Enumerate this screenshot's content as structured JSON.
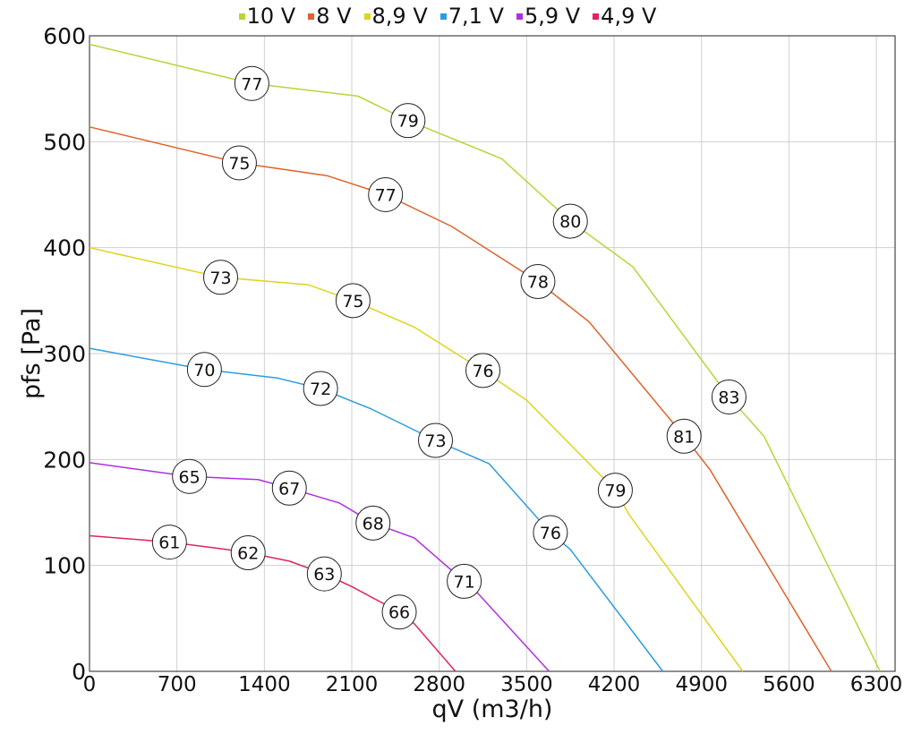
{
  "chart_data": {
    "type": "line",
    "title": "",
    "xlabel": "qV (m3/h)",
    "ylabel": "pfs [Pa]",
    "xlim": [
      0,
      6450
    ],
    "ylim": [
      0,
      600
    ],
    "xticks": [
      0,
      700,
      1400,
      2100,
      2800,
      3500,
      4200,
      4900,
      5600,
      6300
    ],
    "yticks": [
      0,
      100,
      200,
      300,
      400,
      500,
      600
    ],
    "grid": true,
    "legend_position": "top-center",
    "series": [
      {
        "name": "10 V",
        "color": "#b5d63a",
        "points": [
          [
            0,
            592
          ],
          [
            1300,
            555
          ],
          [
            2150,
            543
          ],
          [
            2550,
            520
          ],
          [
            3300,
            484
          ],
          [
            3850,
            425
          ],
          [
            4350,
            382
          ],
          [
            5120,
            259
          ],
          [
            5400,
            222
          ],
          [
            6330,
            0
          ]
        ],
        "labels": [
          {
            "x": 1300,
            "y": 555,
            "text": "77"
          },
          {
            "x": 2550,
            "y": 520,
            "text": "79"
          },
          {
            "x": 3850,
            "y": 425,
            "text": "80"
          },
          {
            "x": 5120,
            "y": 259,
            "text": "83"
          }
        ]
      },
      {
        "name": "8 V",
        "color": "#e0622c",
        "points": [
          [
            0,
            514
          ],
          [
            1200,
            480
          ],
          [
            1900,
            468
          ],
          [
            2370,
            450
          ],
          [
            2900,
            420
          ],
          [
            3590,
            368
          ],
          [
            4000,
            330
          ],
          [
            4760,
            222
          ],
          [
            4970,
            190
          ],
          [
            5940,
            0
          ]
        ],
        "labels": [
          {
            "x": 1200,
            "y": 480,
            "text": "75"
          },
          {
            "x": 2370,
            "y": 450,
            "text": "77"
          },
          {
            "x": 3590,
            "y": 368,
            "text": "78"
          },
          {
            "x": 4760,
            "y": 222,
            "text": "81"
          }
        ]
      },
      {
        "name": "8,9 V",
        "color": "#dfd41c",
        "points": [
          [
            0,
            400
          ],
          [
            1050,
            372
          ],
          [
            1750,
            365
          ],
          [
            2110,
            350
          ],
          [
            2600,
            325
          ],
          [
            3150,
            284
          ],
          [
            3500,
            256
          ],
          [
            4210,
            171
          ],
          [
            4320,
            148
          ],
          [
            5230,
            0
          ]
        ],
        "labels": [
          {
            "x": 1050,
            "y": 372,
            "text": "73"
          },
          {
            "x": 2110,
            "y": 350,
            "text": "75"
          },
          {
            "x": 3150,
            "y": 284,
            "text": "76"
          },
          {
            "x": 4210,
            "y": 171,
            "text": "79"
          }
        ]
      },
      {
        "name": "7,1 V",
        "color": "#2b9ce0",
        "points": [
          [
            0,
            305
          ],
          [
            920,
            285
          ],
          [
            1500,
            277
          ],
          [
            1850,
            267
          ],
          [
            2250,
            248
          ],
          [
            2770,
            218
          ],
          [
            3200,
            196
          ],
          [
            3690,
            131
          ],
          [
            3850,
            115
          ],
          [
            4590,
            0
          ]
        ],
        "labels": [
          {
            "x": 920,
            "y": 285,
            "text": "70"
          },
          {
            "x": 1850,
            "y": 267,
            "text": "72"
          },
          {
            "x": 2770,
            "y": 218,
            "text": "73"
          },
          {
            "x": 3690,
            "y": 131,
            "text": "76"
          }
        ]
      },
      {
        "name": "5,9 V",
        "color": "#b12ee0",
        "points": [
          [
            0,
            197
          ],
          [
            800,
            184
          ],
          [
            1350,
            181
          ],
          [
            1600,
            173
          ],
          [
            2000,
            159
          ],
          [
            2270,
            140
          ],
          [
            2600,
            126
          ],
          [
            3000,
            85
          ],
          [
            3060,
            80
          ],
          [
            3680,
            0
          ]
        ],
        "labels": [
          {
            "x": 800,
            "y": 184,
            "text": "65"
          },
          {
            "x": 1600,
            "y": 173,
            "text": "67"
          },
          {
            "x": 2270,
            "y": 140,
            "text": "68"
          },
          {
            "x": 3000,
            "y": 85,
            "text": "71"
          }
        ]
      },
      {
        "name": "4,9 V",
        "color": "#e0245c",
        "points": [
          [
            0,
            128
          ],
          [
            640,
            122
          ],
          [
            1100,
            115
          ],
          [
            1270,
            112
          ],
          [
            1600,
            104
          ],
          [
            1880,
            92
          ],
          [
            2100,
            80
          ],
          [
            2480,
            56
          ],
          [
            2600,
            45
          ],
          [
            2930,
            0
          ]
        ],
        "labels": [
          {
            "x": 640,
            "y": 122,
            "text": "61"
          },
          {
            "x": 1270,
            "y": 112,
            "text": "62"
          },
          {
            "x": 1880,
            "y": 92,
            "text": "63"
          },
          {
            "x": 2480,
            "y": 56,
            "text": "66"
          }
        ]
      }
    ]
  }
}
